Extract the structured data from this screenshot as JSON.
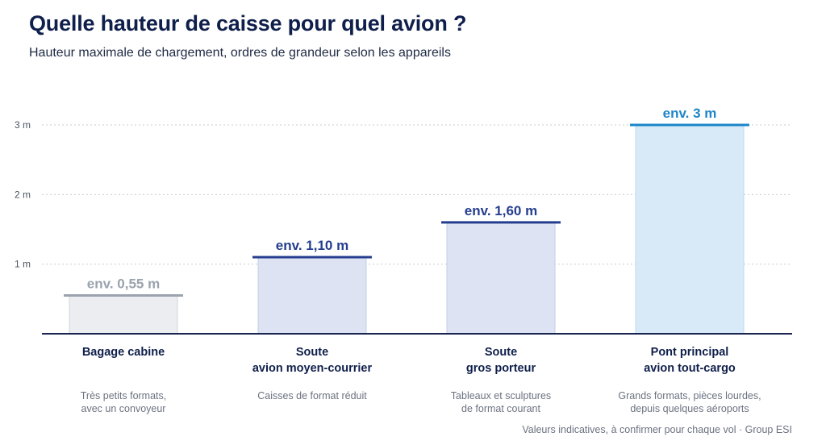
{
  "title": "Quelle hauteur de caisse pour quel avion ?",
  "subtitle": "Hauteur maximale de chargement, ordres de grandeur selon les appareils",
  "footnote": "Valeurs indicatives, à confirmer pour chaque vol · Group ESI",
  "colors": {
    "axis": "#1a2450",
    "grid": "#c7cbd3",
    "tick_text": "#4b5563",
    "category_text": "#0f1f4b",
    "description_text": "#6b7280"
  },
  "chart_data": {
    "type": "bar",
    "title": "Quelle hauteur de caisse pour quel avion ?",
    "subtitle": "Hauteur maximale de chargement, ordres de grandeur selon les appareils",
    "ylim": [
      0,
      3
    ],
    "yticks": [
      1,
      2,
      3
    ],
    "ytick_labels": [
      "1 m",
      "2 m",
      "3 m"
    ],
    "grid": true,
    "bars": [
      {
        "category": [
          "Bagage cabine"
        ],
        "description": [
          "Très petits formats,",
          "avec un convoyeur"
        ],
        "value": 0.55,
        "value_label": "env. 0,55 m",
        "fill": "#ebedf0",
        "stroke": "#d2d6dc",
        "cap": "#9aa3ae",
        "label_color": "#9aa3ae"
      },
      {
        "category": [
          "Soute",
          "avion moyen-courrier"
        ],
        "description": [
          "Caisses de format réduit"
        ],
        "value": 1.1,
        "value_label": "env. 1,10 m",
        "fill": "#dde3f2",
        "stroke": "#c3cde6",
        "cap": "#243e8f",
        "label_color": "#243e8f"
      },
      {
        "category": [
          "Soute",
          "gros porteur"
        ],
        "description": [
          "Tableaux et sculptures",
          "de format courant"
        ],
        "value": 1.6,
        "value_label": "env. 1,60 m",
        "fill": "#dde3f2",
        "stroke": "#c3cde6",
        "cap": "#243e8f",
        "label_color": "#243e8f"
      },
      {
        "category": [
          "Pont principal",
          "avion tout-cargo"
        ],
        "description": [
          "Grands formats, pièces lourdes,",
          "depuis quelques aéroports"
        ],
        "value": 3.0,
        "value_label": "env. 3 m",
        "fill": "#d8eaf8",
        "stroke": "#b9d9f2",
        "cap": "#1d85c8",
        "label_color": "#1d85c8"
      }
    ]
  }
}
